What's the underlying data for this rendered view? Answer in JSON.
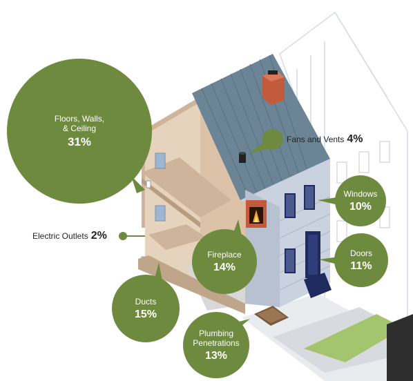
{
  "colors": {
    "bubble": "#6d8a3e",
    "roof": "#6c8596",
    "wall_light": "#e6d3bd",
    "wall_dark": "#cdb49a",
    "trim": "#9aa7b6",
    "siding": "#c9d2de",
    "window": "#1f2b5e",
    "chimney": "#c25a3b",
    "ground": "#e9ecef",
    "lawn": "#a4c46d"
  },
  "leaks": [
    {
      "id": "floors-walls-ceiling",
      "label": "Floors, Walls,\n& Ceiling",
      "percent": "31%"
    },
    {
      "id": "fans-vents",
      "label": "Fans and Vents",
      "percent": "4%"
    },
    {
      "id": "windows",
      "label": "Windows",
      "percent": "10%"
    },
    {
      "id": "electric-outlets",
      "label": "Electric Outlets",
      "percent": "2%"
    },
    {
      "id": "fireplace",
      "label": "Fireplace",
      "percent": "14%"
    },
    {
      "id": "doors",
      "label": "Doors",
      "percent": "11%"
    },
    {
      "id": "ducts",
      "label": "Ducts",
      "percent": "15%"
    },
    {
      "id": "plumbing-penetrations",
      "label": "Plumbing\nPenetrations",
      "percent": "13%"
    }
  ]
}
